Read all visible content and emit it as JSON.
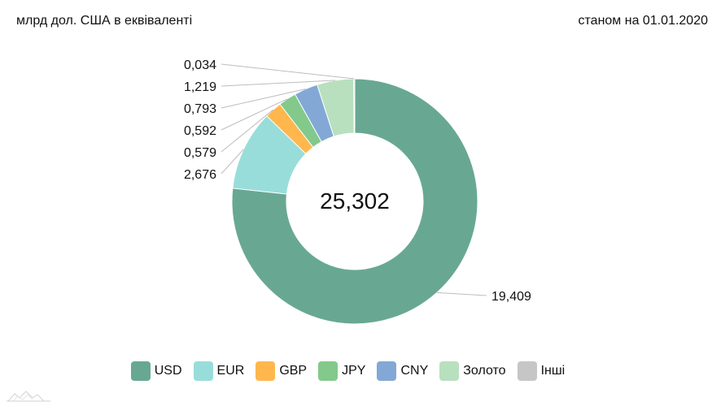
{
  "header": {
    "units": "млрд дол. США в еквіваленті",
    "date": "станом на 01.01.2020"
  },
  "chart_data": {
    "type": "pie",
    "variant": "donut",
    "title": "",
    "center_label": "25,302",
    "total": 25.302,
    "series": [
      {
        "name": "USD",
        "value": 19.409,
        "label": "19,409",
        "color": "#68a893"
      },
      {
        "name": "EUR",
        "value": 2.676,
        "label": "2,676",
        "color": "#99ddda"
      },
      {
        "name": "GBP",
        "value": 0.579,
        "label": "0,579",
        "color": "#ffb74d"
      },
      {
        "name": "JPY",
        "value": 0.592,
        "label": "0,592",
        "color": "#82c98b"
      },
      {
        "name": "CNY",
        "value": 0.793,
        "label": "0,793",
        "color": "#83a8d6"
      },
      {
        "name": "Золото",
        "value": 1.219,
        "label": "1,219",
        "color": "#b8e0bf"
      },
      {
        "name": "Інші",
        "value": 0.034,
        "label": "0,034",
        "color": "#c6c6c6"
      }
    ],
    "legend_position": "bottom"
  }
}
